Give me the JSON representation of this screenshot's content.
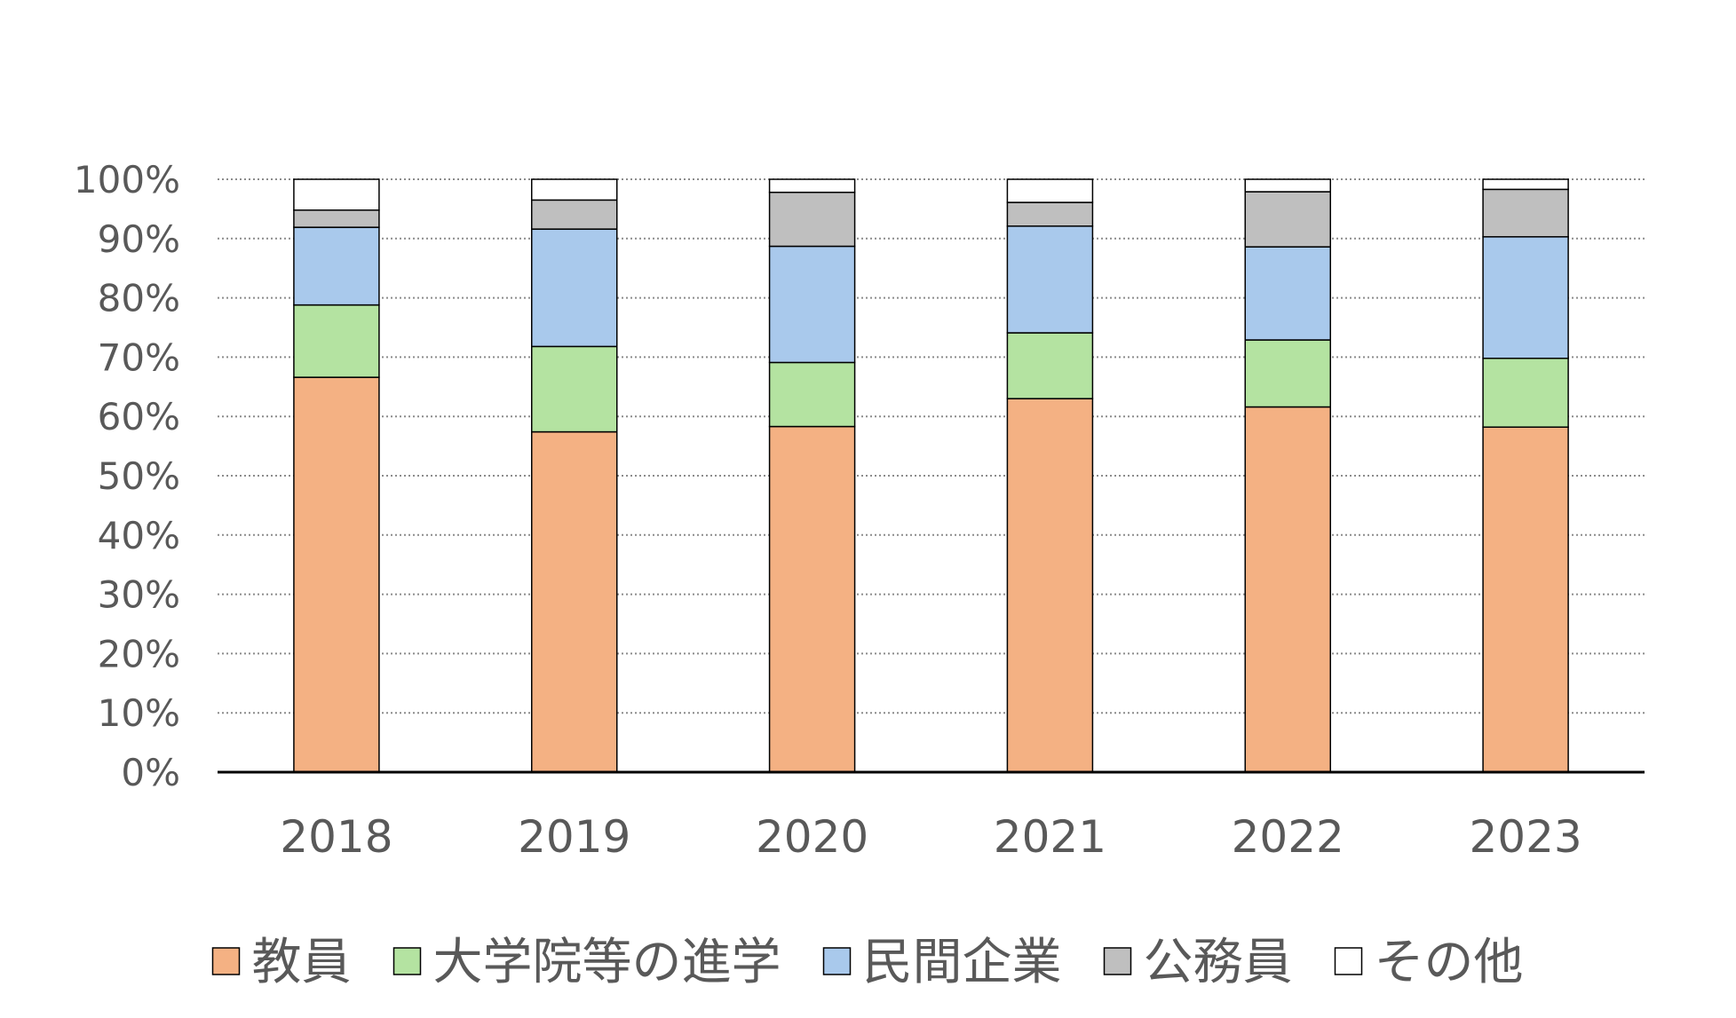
{
  "chart_data": {
    "type": "bar",
    "stacked": true,
    "percent": true,
    "categories": [
      "2018",
      "2019",
      "2020",
      "2021",
      "2022",
      "2023"
    ],
    "ylim": [
      0,
      100
    ],
    "yticks": [
      "0%",
      "10%",
      "20%",
      "30%",
      "40%",
      "50%",
      "60%",
      "70%",
      "80%",
      "90%",
      "100%"
    ],
    "grid": true,
    "legend_position": "bottom",
    "series": [
      {
        "name": "教員",
        "color": "#F4B183",
        "values": [
          66.6,
          57.4,
          58.3,
          63.0,
          61.6,
          58.2
        ]
      },
      {
        "name": "大学院等の進学",
        "color": "#B4E3A1",
        "values": [
          12.2,
          14.4,
          10.8,
          11.1,
          11.3,
          11.6
        ]
      },
      {
        "name": "民間企業",
        "color": "#A9C9EC",
        "values": [
          13.1,
          19.8,
          19.6,
          18.0,
          15.7,
          20.5
        ]
      },
      {
        "name": "公務員",
        "color": "#BFBFBF",
        "values": [
          2.9,
          4.9,
          9.1,
          4.0,
          9.3,
          8.0
        ]
      },
      {
        "name": "その他",
        "color": "#FFFFFF",
        "values": [
          5.2,
          3.5,
          2.2,
          3.9,
          2.1,
          1.7
        ]
      }
    ]
  }
}
